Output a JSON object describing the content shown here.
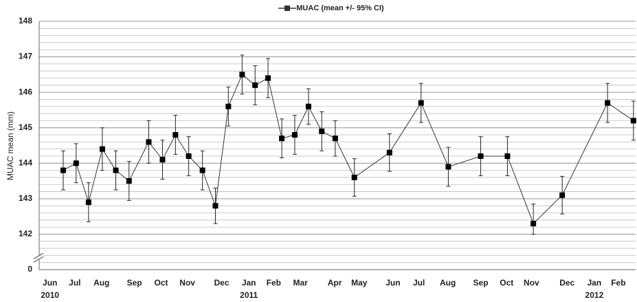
{
  "chart_data": {
    "type": "line",
    "legend": "top",
    "y_label": "MUAC mean (mm)",
    "axis_break": true,
    "grid": true,
    "series": [
      {
        "name": "MUAC (mean +/- 95% CI)",
        "color": "#333333",
        "marker": "square",
        "x": [
          0.49,
          0.97,
          1.43,
          1.94,
          2.44,
          2.93,
          3.66,
          4.17,
          4.65,
          5.14,
          5.65,
          6.13,
          6.61,
          7.12,
          7.6,
          8.08,
          8.59,
          9.07,
          9.58,
          10.07,
          10.57,
          11.28,
          12.58,
          13.75,
          14.76,
          15.96,
          16.95,
          17.91,
          18.98,
          20.66,
          21.62
        ],
        "values": [
          143.8,
          144.0,
          142.9,
          144.4,
          143.8,
          143.5,
          144.6,
          144.1,
          144.8,
          144.2,
          143.8,
          142.8,
          145.6,
          146.5,
          146.2,
          146.4,
          144.7,
          144.8,
          145.6,
          144.9,
          144.7,
          143.6,
          144.3,
          145.7,
          143.9,
          144.2,
          144.2,
          142.3,
          143.1,
          145.7,
          145.2
        ],
        "errors": [
          0.55,
          0.55,
          0.55,
          0.6,
          0.55,
          0.55,
          0.6,
          0.55,
          0.55,
          0.55,
          0.55,
          0.5,
          0.55,
          0.55,
          0.55,
          0.55,
          0.55,
          0.55,
          0.5,
          0.55,
          0.5,
          0.53,
          0.53,
          0.55,
          0.55,
          0.55,
          0.55,
          0.55,
          0.53,
          0.55,
          0.55
        ]
      }
    ],
    "xlim": [
      -0.4,
      21.7
    ],
    "xticks": [
      {
        "value": 0,
        "label": "Jun"
      },
      {
        "value": 0.92,
        "label": "Jul"
      },
      {
        "value": 1.91,
        "label": "Aug"
      },
      {
        "value": 3.13,
        "label": "Sep"
      },
      {
        "value": 4.12,
        "label": "Oct"
      },
      {
        "value": 5.09,
        "label": "Nov"
      },
      {
        "value": 6.36,
        "label": "Dec"
      },
      {
        "value": 7.37,
        "label": "Jan"
      },
      {
        "value": 8.29,
        "label": "Feb"
      },
      {
        "value": 9.28,
        "label": "Mar"
      },
      {
        "value": 10.55,
        "label": "Apr"
      },
      {
        "value": 11.46,
        "label": "May"
      },
      {
        "value": 12.71,
        "label": "Jun"
      },
      {
        "value": 13.67,
        "label": "Jul"
      },
      {
        "value": 14.74,
        "label": "Aug"
      },
      {
        "value": 15.96,
        "label": "Sep"
      },
      {
        "value": 16.92,
        "label": "Oct"
      },
      {
        "value": 17.84,
        "label": "Nov"
      },
      {
        "value": 19.16,
        "label": "Dec"
      },
      {
        "value": 20.17,
        "label": "Jan"
      },
      {
        "value": 21.06,
        "label": "Feb"
      }
    ],
    "x_year_labels": [
      {
        "value": 0,
        "label": "2010"
      },
      {
        "value": 7.37,
        "label": "2011"
      },
      {
        "value": 20.17,
        "label": "2012"
      }
    ],
    "ylim": [
      0,
      148
    ],
    "yticks": [
      0,
      142,
      143,
      144,
      145,
      146,
      147,
      148
    ]
  }
}
